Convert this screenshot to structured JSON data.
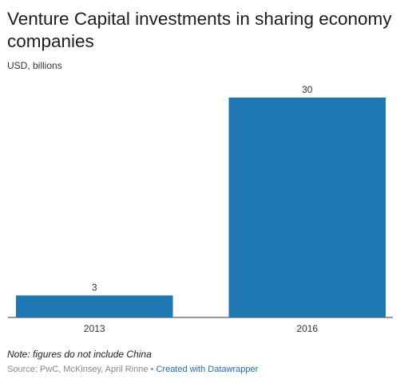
{
  "chart_data": {
    "type": "bar",
    "title": "Venture Capital investments in sharing economy companies",
    "subtitle": "USD, billions",
    "categories": [
      "2013",
      "2016"
    ],
    "values": [
      3,
      30
    ],
    "ylim": [
      0,
      30
    ],
    "grid": false,
    "color": "#1f77b4"
  },
  "footer": {
    "note": "Note: figures do not include China",
    "source": "Source: PwC, McKinsey, April Rinne",
    "separator": "•",
    "credit": "Created with Datawrapper"
  }
}
